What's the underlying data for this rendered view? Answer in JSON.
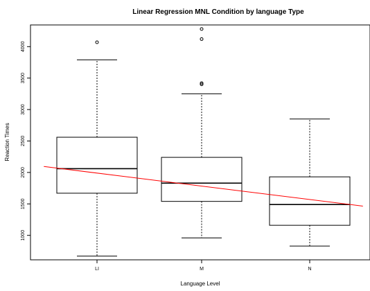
{
  "chart_data": {
    "type": "box",
    "title": "Linear Regression MNL Condition by language Type",
    "xlabel": "Language Level",
    "ylabel": "Reaction Times",
    "categories": [
      "LI",
      "M",
      "N"
    ],
    "ylim": [
      600,
      4400
    ],
    "yticks": [
      1000,
      1500,
      2000,
      2500,
      3000,
      3500,
      4000
    ],
    "grid": false,
    "boxes": [
      {
        "category": "LI",
        "whisker_low": 670,
        "q1": 1670,
        "median": 2060,
        "q3": 2560,
        "whisker_high": 3790,
        "outliers": [
          4070
        ]
      },
      {
        "category": "M",
        "whisker_low": 960,
        "q1": 1540,
        "median": 1830,
        "q3": 2240,
        "whisker_high": 3250,
        "outliers": [
          3400,
          3420,
          4120,
          4280
        ]
      },
      {
        "category": "N",
        "whisker_low": 830,
        "q1": 1160,
        "median": 1490,
        "q3": 1930,
        "whisker_high": 2850,
        "outliers": []
      }
    ],
    "regression_line": {
      "color": "#ff0000",
      "x": [
        0.5,
        3.5
      ],
      "y": [
        2095,
        1465
      ]
    },
    "colors": {
      "box": "#000000",
      "regression": "#ff0000"
    }
  }
}
